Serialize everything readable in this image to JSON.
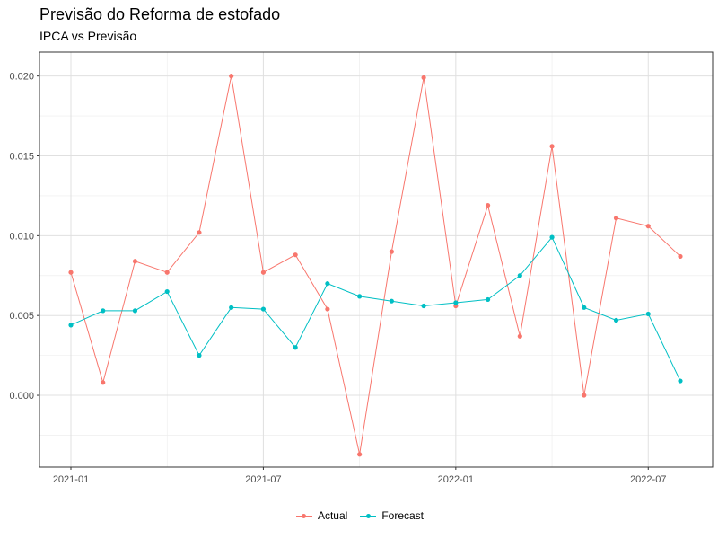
{
  "title": "Previsão do Reforma de estofado",
  "subtitle": "IPCA vs Previsão",
  "chart_data": {
    "type": "line",
    "title": "Previsão do Reforma de estofado",
    "subtitle": "IPCA vs Previsão",
    "xlabel": "",
    "ylabel": "",
    "x": [
      "2021-01",
      "2021-02",
      "2021-03",
      "2021-04",
      "2021-05",
      "2021-06",
      "2021-07",
      "2021-08",
      "2021-09",
      "2021-10",
      "2021-11",
      "2021-12",
      "2022-01",
      "2022-02",
      "2022-03",
      "2022-04",
      "2022-05",
      "2022-06",
      "2022-07",
      "2022-08"
    ],
    "x_ticks": [
      "2021-01",
      "2021-07",
      "2022-01",
      "2022-07"
    ],
    "y_ticks": [
      "0.000",
      "0.005",
      "0.010",
      "0.015",
      "0.020"
    ],
    "ylim": [
      -0.0045,
      0.0215
    ],
    "grid": true,
    "legend_position": "bottom",
    "series": [
      {
        "name": "Actual",
        "color": "#F8766D",
        "values": [
          0.0077,
          0.0008,
          0.0084,
          0.0077,
          0.0102,
          0.02,
          0.0077,
          0.0088,
          0.0054,
          -0.0037,
          0.009,
          0.0199,
          0.0056,
          0.0119,
          0.0037,
          0.0156,
          0.0,
          0.0111,
          0.0106,
          0.0087
        ]
      },
      {
        "name": "Forecast",
        "color": "#00BFC4",
        "values": [
          0.0044,
          0.0053,
          0.0053,
          0.0065,
          0.0025,
          0.0055,
          0.0054,
          0.003,
          0.007,
          0.0062,
          0.0059,
          0.0056,
          0.0058,
          0.006,
          0.0075,
          0.0099,
          0.0055,
          0.0047,
          0.0051,
          0.0009
        ]
      }
    ]
  }
}
